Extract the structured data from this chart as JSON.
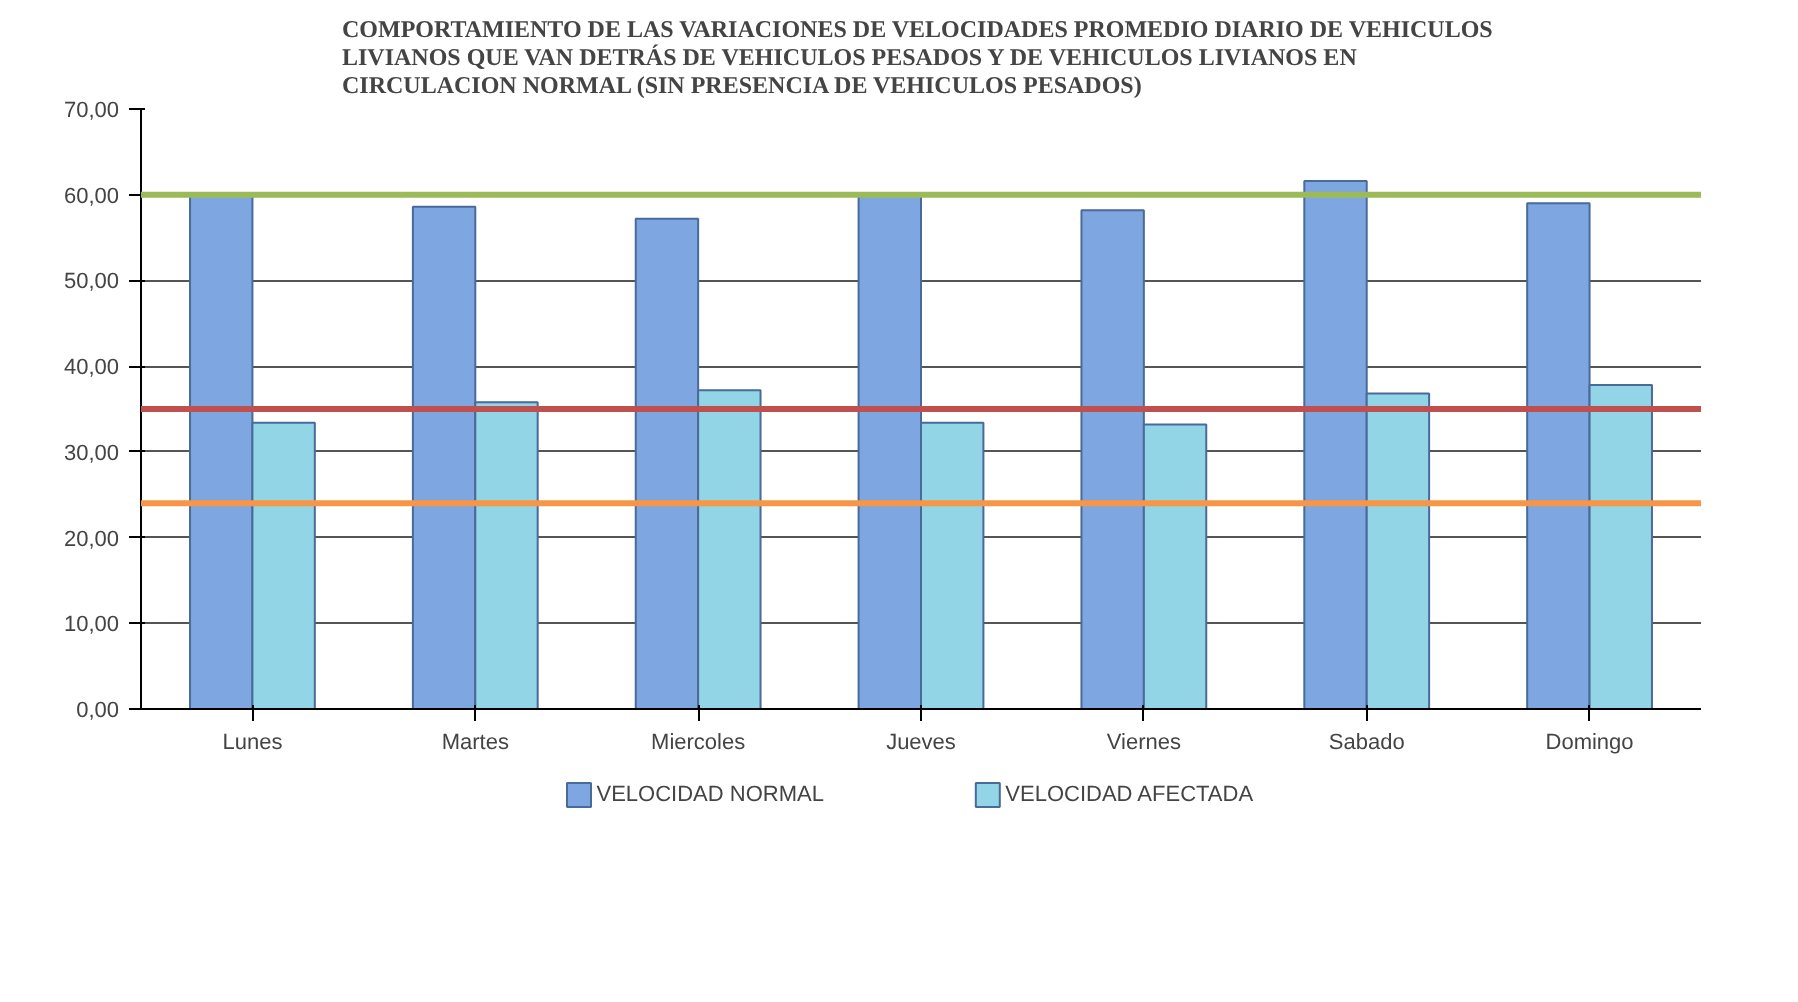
{
  "chart_data": {
    "type": "bar",
    "title": "COMPORTAMIENTO DE LAS VARIACIONES DE VELOCIDADES  PROMEDIO DIARIO DE VEHICULOS LIVIANOS QUE VAN DETRÁS DE VEHICULOS PESADOS Y DE VEHICULOS LIVIANOS EN CIRCULACION NORMAL (SIN PRESENCIA DE VEHICULOS PESADOS)",
    "categories": [
      "Lunes",
      "Martes",
      "Miercoles",
      "Jueves",
      "Viernes",
      "Sabado",
      "Domingo"
    ],
    "series": [
      {
        "name": "VELOCIDAD NORMAL",
        "color": "#7ea6e0",
        "values": [
          60.0,
          58.6,
          57.2,
          60.0,
          58.2,
          61.6,
          59.0
        ]
      },
      {
        "name": "VELOCIDAD AFECTADA",
        "color": "#92d5e6",
        "values": [
          33.4,
          35.8,
          37.2,
          33.4,
          33.2,
          36.8,
          37.8
        ]
      }
    ],
    "ylim": [
      0,
      70
    ],
    "yticks": [
      {
        "value": 0,
        "label": "0,00"
      },
      {
        "value": 10,
        "label": "10,00"
      },
      {
        "value": 20,
        "label": "20,00"
      },
      {
        "value": 30,
        "label": "30,00"
      },
      {
        "value": 40,
        "label": "40,00"
      },
      {
        "value": 50,
        "label": "50,00"
      },
      {
        "value": 60,
        "label": "60,00"
      },
      {
        "value": 70,
        "label": "70,00"
      }
    ],
    "ref_lines": [
      {
        "axis": "y",
        "value": 60,
        "color": "#9bbb59"
      },
      {
        "axis": "y",
        "value": 35,
        "color": "#c0504d"
      },
      {
        "axis": "y",
        "value": 24,
        "color": "#f79646"
      }
    ],
    "grid": "y",
    "legend": "bottom"
  }
}
